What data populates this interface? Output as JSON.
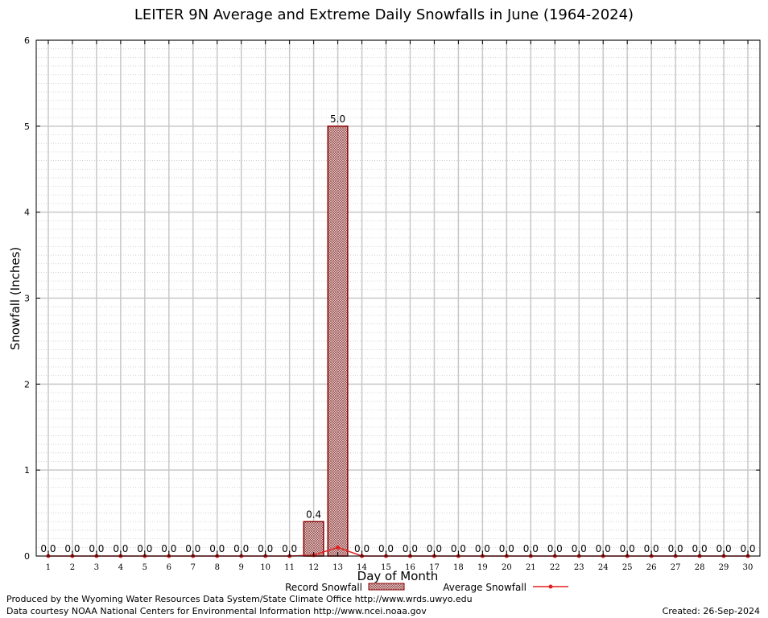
{
  "chart_data": {
    "type": "bar",
    "title": "LEITER 9N Average and Extreme Daily Snowfalls in June (1964-2024)",
    "xlabel": "Day of Month",
    "ylabel": "Snowfall (Inches)",
    "ylim": [
      0,
      6
    ],
    "yticks": [
      "0",
      "1",
      "2",
      "3",
      "4",
      "5",
      "6"
    ],
    "categories": [
      "1",
      "2",
      "3",
      "4",
      "5",
      "6",
      "7",
      "8",
      "9",
      "10",
      "11",
      "12",
      "13",
      "14",
      "15",
      "16",
      "17",
      "18",
      "19",
      "20",
      "21",
      "22",
      "23",
      "24",
      "25",
      "26",
      "27",
      "28",
      "29",
      "30"
    ],
    "series": [
      {
        "name": "Record Snowfall",
        "kind": "bar",
        "values": [
          0,
          0,
          0,
          0,
          0,
          0,
          0,
          0,
          0,
          0,
          0,
          0.4,
          5.0,
          0,
          0,
          0,
          0,
          0,
          0,
          0,
          0,
          0,
          0,
          0,
          0,
          0,
          0,
          0,
          0,
          0
        ],
        "labels": [
          "0.0",
          "0.0",
          "0.0",
          "0.0",
          "0.0",
          "0.0",
          "0.0",
          "0.0",
          "0.0",
          "0.0",
          "0.0",
          "0.4",
          "5.0",
          "0.0",
          "0.0",
          "0.0",
          "0.0",
          "0.0",
          "0.0",
          "0.0",
          "0.0",
          "0.0",
          "0.0",
          "0.0",
          "0.0",
          "0.0",
          "0.0",
          "0.0",
          "0.0",
          "0.0"
        ]
      },
      {
        "name": "Average Snowfall",
        "kind": "line",
        "values": [
          0,
          0,
          0,
          0,
          0,
          0,
          0,
          0,
          0,
          0,
          0,
          0.01,
          0.1,
          0,
          0,
          0,
          0,
          0,
          0,
          0,
          0,
          0,
          0,
          0,
          0,
          0,
          0,
          0,
          0,
          0
        ]
      }
    ],
    "grid": true,
    "legend": "bottom",
    "colors": {
      "bar_fill": "#c9a4a4",
      "bar_stroke": "#8b0000",
      "line": "#e02020",
      "grid": "#c8c8c8"
    }
  },
  "footer": {
    "produced_by": "Produced by the Wyoming Water Resources Data System/State Climate Office http://www.wrds.uwyo.edu",
    "courtesy": "Data courtesy NOAA National Centers for Environmental Information http://www.ncei.noaa.gov",
    "created": "Created:  26-Sep-2024"
  }
}
